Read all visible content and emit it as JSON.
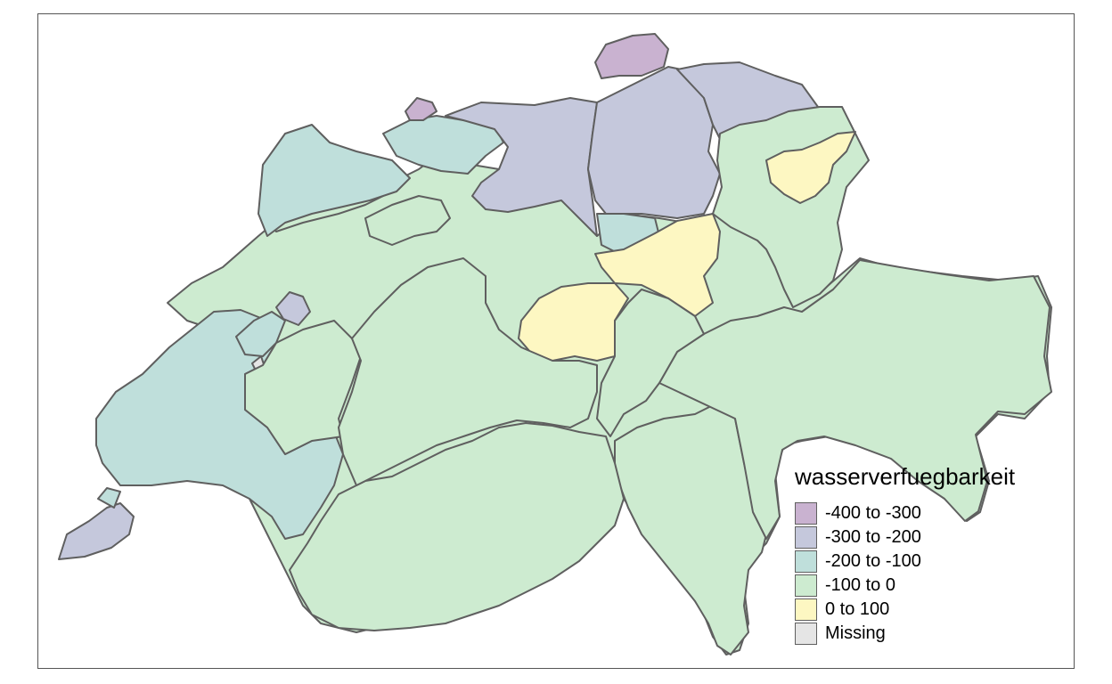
{
  "map": {
    "legend": {
      "title": "wasserverfuegbarkeit",
      "items": [
        {
          "label": "-400 to -300",
          "color": "#c9b2d0"
        },
        {
          "label": "-300 to -200",
          "color": "#c5c8dc"
        },
        {
          "label": "-200 to -100",
          "color": "#bfdfdb"
        },
        {
          "label": "-100 to 0",
          "color": "#cdebd0"
        },
        {
          "label": "0 to 100",
          "color": "#fdf7c2"
        },
        {
          "label": "Missing",
          "color": "#e5e5e5"
        }
      ]
    }
  }
}
